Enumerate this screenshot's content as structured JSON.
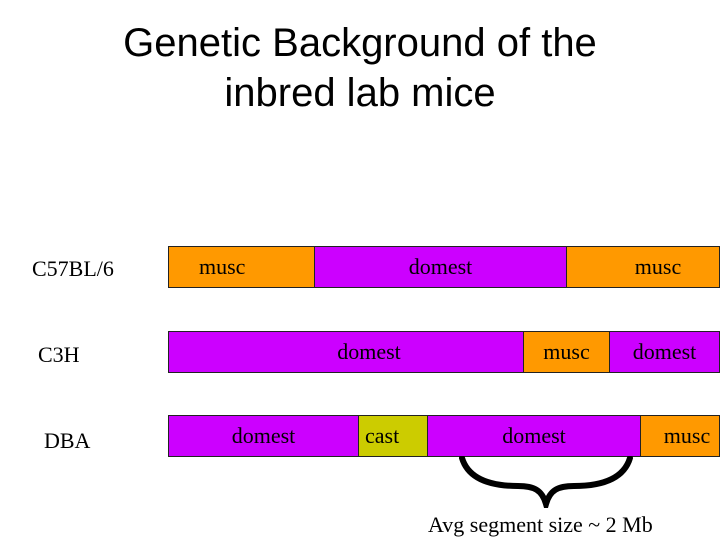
{
  "title": {
    "line1": "Genetic Background of the",
    "line2": "inbred lab mice"
  },
  "strains": [
    {
      "name": "C57BL/6",
      "segments": [
        {
          "label": "musc",
          "color": "#ff9900"
        },
        {
          "label": "domest",
          "color": "#cc00ff"
        },
        {
          "label": "musc",
          "color": "#ff9900"
        }
      ]
    },
    {
      "name": "C3H",
      "segments": [
        {
          "label": "domest",
          "color": "#cc00ff"
        },
        {
          "label": "musc",
          "color": "#ff9900"
        },
        {
          "label": "domest",
          "color": "#cc00ff"
        }
      ]
    },
    {
      "name": "DBA",
      "segments": [
        {
          "label": "domest",
          "color": "#cc00ff"
        },
        {
          "label": "cast",
          "color": "#cccc00"
        },
        {
          "label": "domest",
          "color": "#cc00ff"
        },
        {
          "label": "musc",
          "color": "#ff9900"
        }
      ]
    }
  ],
  "annotation": "Avg segment size ~ 2 Mb"
}
